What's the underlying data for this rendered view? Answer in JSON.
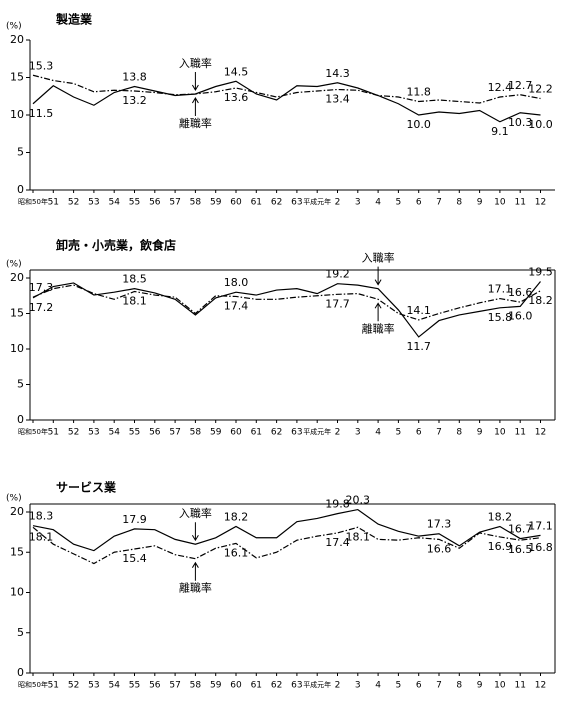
{
  "chart_data": [
    {
      "type": "line",
      "title": "製造業",
      "y_label": "(%)",
      "categories": [
        "昭和50年",
        "51",
        "52",
        "53",
        "54",
        "55",
        "56",
        "57",
        "58",
        "59",
        "60",
        "61",
        "62",
        "63",
        "平成元年",
        "2",
        "3",
        "4",
        "5",
        "6",
        "7",
        "8",
        "9",
        "10",
        "11",
        "12"
      ],
      "ylim": [
        0,
        20
      ],
      "yticks": [
        0,
        5,
        10,
        15,
        20
      ],
      "box": false,
      "series": [
        {
          "name": "入職率",
          "color": "#000000",
          "dash": "solid",
          "values": [
            11.5,
            13.9,
            12.4,
            11.3,
            13.0,
            13.8,
            13.2,
            12.6,
            12.8,
            13.8,
            14.5,
            12.8,
            12.0,
            13.9,
            13.8,
            14.3,
            13.6,
            12.6,
            11.5,
            10.0,
            10.4,
            10.2,
            10.6,
            9.1,
            10.3,
            10.0
          ],
          "value_labels": [
            "11.5",
            null,
            null,
            null,
            null,
            "13.8",
            null,
            null,
            null,
            null,
            "14.5",
            null,
            null,
            null,
            null,
            "14.3",
            null,
            null,
            null,
            "10.0",
            null,
            null,
            null,
            "9.1",
            "10.3",
            "10.0"
          ]
        },
        {
          "name": "離職率",
          "color": "#000000",
          "dash": "dashdot",
          "values": [
            15.3,
            14.6,
            14.2,
            13.1,
            13.3,
            13.2,
            13.0,
            12.7,
            12.8,
            13.1,
            13.6,
            13.0,
            12.4,
            13.0,
            13.2,
            13.4,
            13.3,
            12.6,
            12.4,
            11.8,
            12.0,
            11.8,
            11.6,
            12.4,
            12.7,
            12.2
          ],
          "value_labels": [
            "15.3",
            null,
            null,
            null,
            null,
            "13.2",
            null,
            null,
            null,
            null,
            "13.6",
            null,
            null,
            null,
            null,
            "13.4",
            null,
            null,
            null,
            "11.8",
            null,
            null,
            null,
            "12.4",
            "12.7",
            "12.2"
          ]
        }
      ]
    },
    {
      "type": "line",
      "title": "卸売・小売業，飲食店",
      "y_label": "(%)",
      "categories": [
        "昭和50年",
        "51",
        "52",
        "53",
        "54",
        "55",
        "56",
        "57",
        "58",
        "59",
        "60",
        "61",
        "62",
        "63",
        "平成元年",
        "2",
        "3",
        "4",
        "5",
        "6",
        "7",
        "8",
        "9",
        "10",
        "11",
        "12"
      ],
      "ylim": [
        0,
        20
      ],
      "yticks": [
        0,
        5,
        10,
        15,
        20
      ],
      "box": true,
      "series": [
        {
          "name": "入職率",
          "color": "#000000",
          "dash": "solid",
          "values": [
            17.2,
            18.8,
            19.3,
            17.6,
            18.0,
            18.5,
            17.9,
            17.0,
            14.8,
            17.2,
            18.0,
            17.6,
            18.3,
            18.5,
            17.8,
            19.2,
            19.0,
            18.5,
            15.5,
            11.7,
            14.0,
            14.8,
            15.3,
            15.8,
            16.0,
            19.5
          ],
          "value_labels": [
            "17.2",
            null,
            null,
            null,
            null,
            "18.5",
            null,
            null,
            null,
            null,
            "18.0",
            null,
            null,
            null,
            null,
            "19.2",
            null,
            null,
            null,
            "11.7",
            null,
            null,
            null,
            "15.8",
            "16.0",
            "19.5"
          ]
        },
        {
          "name": "離職率",
          "color": "#000000",
          "dash": "dashdot",
          "values": [
            17.3,
            18.5,
            19.0,
            17.8,
            17.0,
            18.1,
            17.6,
            17.3,
            15.0,
            17.5,
            17.4,
            17.0,
            17.0,
            17.3,
            17.5,
            17.7,
            17.8,
            17.0,
            15.0,
            14.1,
            15.0,
            15.8,
            16.5,
            17.1,
            16.6,
            18.2
          ],
          "value_labels": [
            "17.3",
            null,
            null,
            null,
            null,
            "18.1",
            null,
            null,
            null,
            null,
            "17.4",
            null,
            null,
            null,
            null,
            "17.7",
            null,
            null,
            null,
            "14.1",
            null,
            null,
            null,
            "17.1",
            "16.6",
            "18.2"
          ]
        }
      ]
    },
    {
      "type": "line",
      "title": "サービス業",
      "y_label": "(%)",
      "categories": [
        "昭和50年",
        "51",
        "52",
        "53",
        "54",
        "55",
        "56",
        "57",
        "58",
        "59",
        "60",
        "61",
        "62",
        "63",
        "平成元年",
        "2",
        "3",
        "4",
        "5",
        "6",
        "7",
        "8",
        "9",
        "10",
        "11",
        "12"
      ],
      "ylim": [
        0,
        20
      ],
      "yticks": [
        0,
        5,
        10,
        15,
        20
      ],
      "box": true,
      "series": [
        {
          "name": "入職率",
          "color": "#000000",
          "dash": "solid",
          "values": [
            18.3,
            17.8,
            16.0,
            15.2,
            17.0,
            17.9,
            17.8,
            16.6,
            16.0,
            16.8,
            18.2,
            16.8,
            16.8,
            18.8,
            19.2,
            19.8,
            20.3,
            18.5,
            17.6,
            17.0,
            17.3,
            15.8,
            17.5,
            18.2,
            16.7,
            17.1
          ],
          "value_labels": [
            "18.3",
            null,
            null,
            null,
            null,
            "17.9",
            null,
            null,
            null,
            null,
            "18.2",
            null,
            null,
            null,
            null,
            "19.8",
            "20.3",
            null,
            null,
            null,
            "17.3",
            null,
            null,
            "18.2",
            "16.7",
            "17.1"
          ]
        },
        {
          "name": "離職率",
          "color": "#000000",
          "dash": "dashdot",
          "values": [
            18.1,
            16.0,
            14.8,
            13.6,
            15.0,
            15.4,
            15.8,
            14.7,
            14.2,
            15.5,
            16.1,
            14.3,
            15.0,
            16.5,
            17.0,
            17.4,
            18.1,
            16.6,
            16.5,
            16.8,
            16.6,
            15.5,
            17.4,
            16.9,
            16.5,
            16.8
          ],
          "value_labels": [
            "18.1",
            null,
            null,
            null,
            null,
            "15.4",
            null,
            null,
            null,
            null,
            "16.1",
            null,
            null,
            null,
            null,
            "17.4",
            "18.1",
            null,
            null,
            null,
            "16.6",
            null,
            null,
            "16.9",
            "16.5",
            "16.8"
          ]
        }
      ]
    }
  ]
}
